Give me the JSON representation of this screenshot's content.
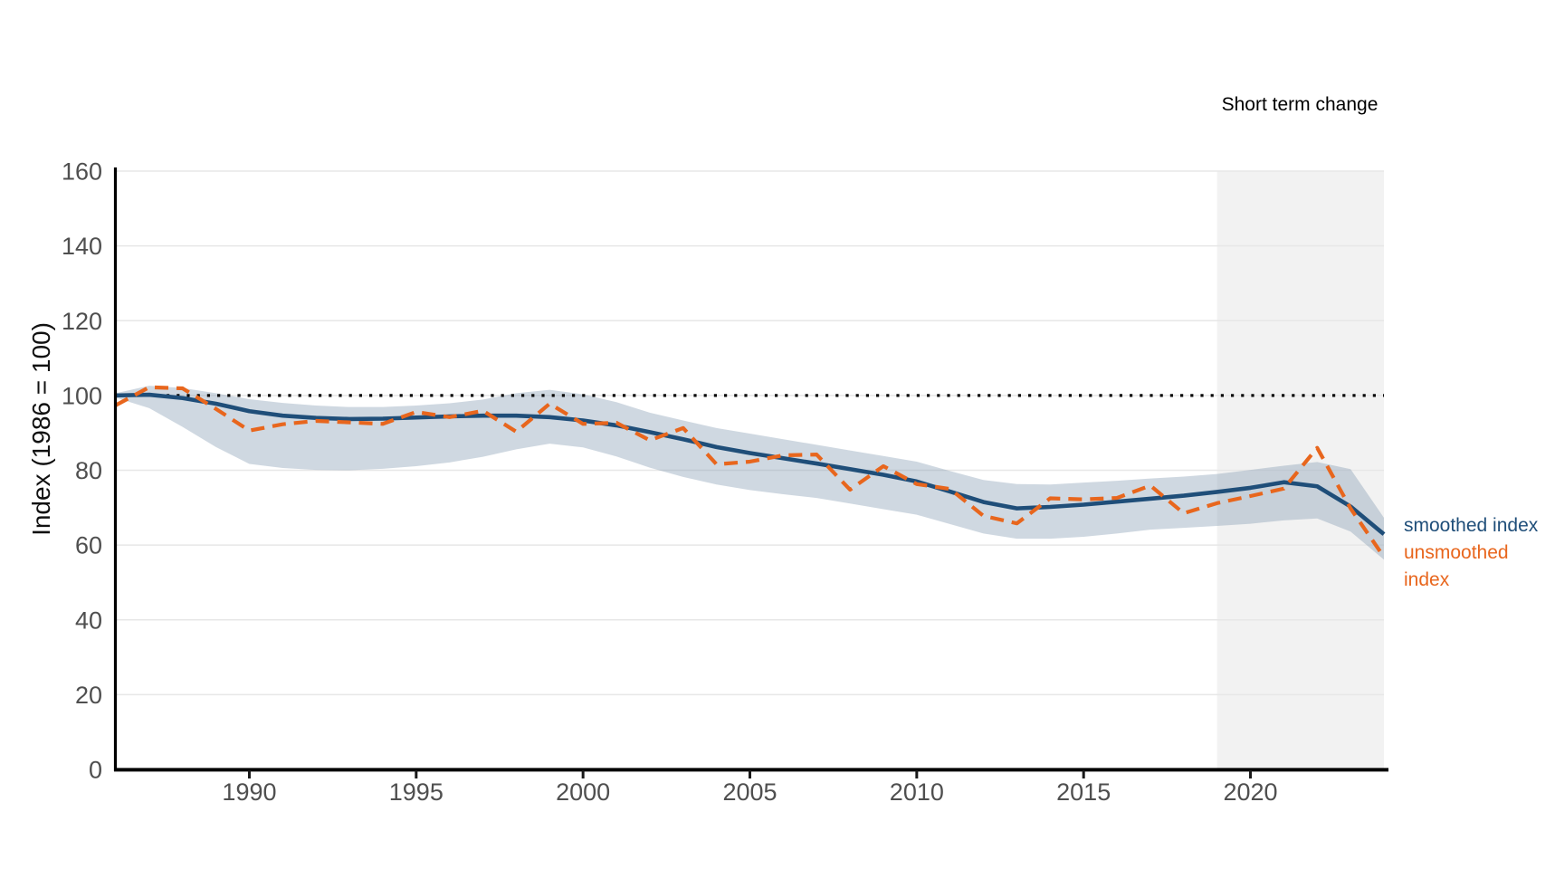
{
  "chart_data": {
    "type": "line",
    "ylabel": "Index (1986 = 100)",
    "xlim": [
      1986,
      2024
    ],
    "ylim": [
      0,
      160
    ],
    "xticks": [
      1990,
      1995,
      2000,
      2005,
      2010,
      2015,
      2020
    ],
    "yticks": [
      0,
      20,
      40,
      60,
      80,
      100,
      120,
      140,
      160
    ],
    "grid": "horizontal",
    "reference_line": {
      "value": 100,
      "style": "dotted",
      "color": "#0a0a0a"
    },
    "shaded_region": {
      "x_start": 2019,
      "x_end": 2024,
      "label": "Short term change",
      "color": "#f2f2f2"
    },
    "x": [
      1986,
      1987,
      1988,
      1989,
      1990,
      1991,
      1992,
      1993,
      1994,
      1995,
      1996,
      1997,
      1998,
      1999,
      2000,
      2001,
      2002,
      2003,
      2004,
      2005,
      2006,
      2007,
      2008,
      2009,
      2010,
      2011,
      2012,
      2013,
      2014,
      2015,
      2016,
      2017,
      2018,
      2019,
      2020,
      2021,
      2022,
      2023,
      2024
    ],
    "series": [
      {
        "name": "smoothed index",
        "color": "#1f4e79",
        "style": "solid",
        "values": [
          100.0,
          100.2,
          99.3,
          97.8,
          95.8,
          94.6,
          94.0,
          93.7,
          93.8,
          94.1,
          94.4,
          94.6,
          94.6,
          94.2,
          93.3,
          92.0,
          90.2,
          88.3,
          86.2,
          84.6,
          83.2,
          81.8,
          80.3,
          78.8,
          77.0,
          74.3,
          71.5,
          69.8,
          70.2,
          70.8,
          71.6,
          72.4,
          73.2,
          74.2,
          75.3,
          76.8,
          75.7,
          70.3,
          62.9
        ]
      },
      {
        "name": "unsmoothed index",
        "color": "#e8661d",
        "style": "dashed",
        "values": [
          97.4,
          102.2,
          101.9,
          96.4,
          90.6,
          92.3,
          93.2,
          92.8,
          92.4,
          95.6,
          94.2,
          95.9,
          90.3,
          97.8,
          92.4,
          92.7,
          88.0,
          91.3,
          81.6,
          82.3,
          84.0,
          84.2,
          74.8,
          81.1,
          76.3,
          75.0,
          67.8,
          65.8,
          72.5,
          72.2,
          72.6,
          75.9,
          68.5,
          71.2,
          73.1,
          75.1,
          86.0,
          69.8,
          56.8
        ]
      }
    ],
    "band": {
      "name": "confidence-band",
      "color": "#cfd8e1",
      "hi": [
        100.6,
        102.6,
        102.0,
        100.6,
        99.0,
        98.0,
        97.3,
        96.9,
        96.9,
        97.3,
        97.9,
        98.9,
        100.6,
        101.5,
        100.3,
        98.2,
        95.4,
        93.3,
        91.3,
        89.8,
        88.3,
        86.8,
        85.3,
        83.8,
        82.3,
        79.8,
        77.4,
        76.3,
        76.2,
        76.7,
        77.2,
        77.8,
        78.3,
        79.0,
        80.1,
        81.2,
        82.2,
        80.3,
        67.3
      ],
      "lo": [
        99.4,
        96.6,
        91.6,
        86.2,
        81.7,
        80.6,
        80.1,
        80.0,
        80.4,
        81.1,
        82.1,
        83.6,
        85.6,
        87.1,
        86.1,
        83.7,
        80.7,
        78.2,
        76.2,
        74.7,
        73.6,
        72.6,
        71.1,
        69.6,
        68.1,
        65.6,
        63.1,
        61.7,
        61.7,
        62.2,
        63.1,
        64.1,
        64.6,
        65.1,
        65.7,
        66.6,
        67.1,
        63.6,
        56.1
      ]
    },
    "legend": {
      "position": "right",
      "entries": [
        {
          "label": "smoothed index",
          "color": "#1f4e79"
        },
        {
          "label": "unsmoothed index",
          "color": "#e8661d"
        }
      ]
    }
  }
}
